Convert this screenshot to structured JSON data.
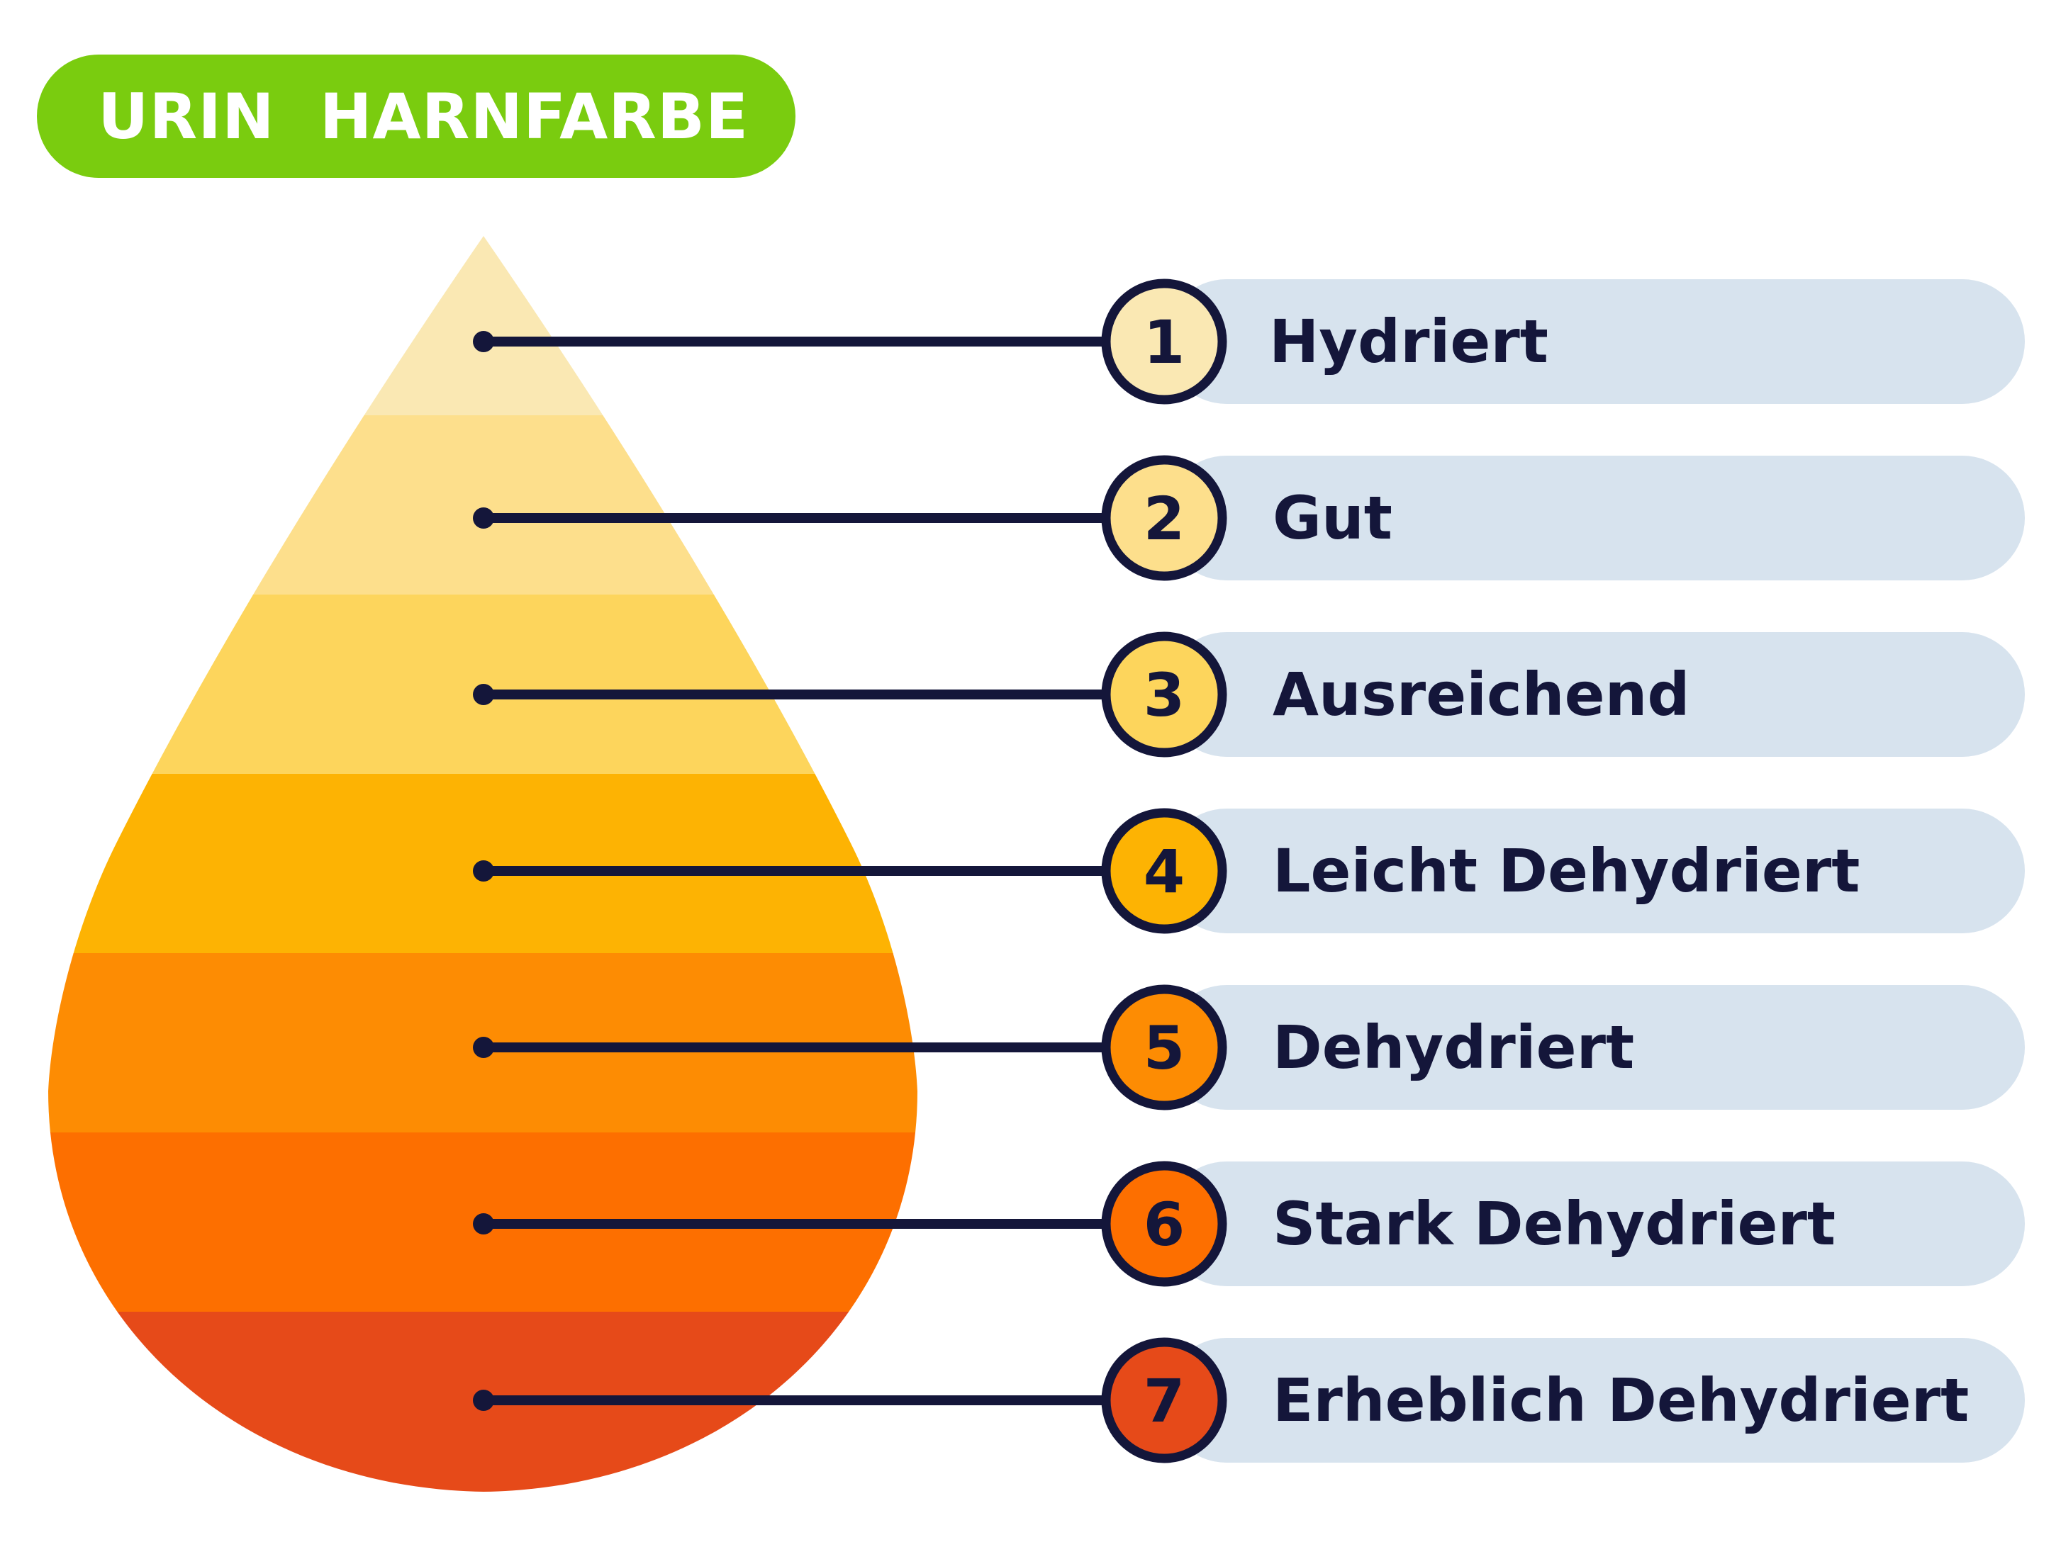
{
  "title": "URIN  HARNFARBE",
  "colors": {
    "title_bg": "#7acc0f",
    "title_text": "#ffffff",
    "line": "#14163a",
    "label_bg": "#d7e3ee",
    "label_text": "#14163a"
  },
  "levels": [
    {
      "number": "1",
      "label": "Hydriert",
      "color": "#fae8b3"
    },
    {
      "number": "2",
      "label": "Gut",
      "color": "#fddf8c"
    },
    {
      "number": "3",
      "label": "Ausreichend",
      "color": "#fdd55c"
    },
    {
      "number": "4",
      "label": "Leicht Dehydriert",
      "color": "#fdb303"
    },
    {
      "number": "5",
      "label": "Dehydriert",
      "color": "#fd8c03"
    },
    {
      "number": "6",
      "label": "Stark Dehydriert",
      "color": "#fd6f00"
    },
    {
      "number": "7",
      "label": "Erheblich Dehydriert",
      "color": "#e64a19"
    }
  ]
}
